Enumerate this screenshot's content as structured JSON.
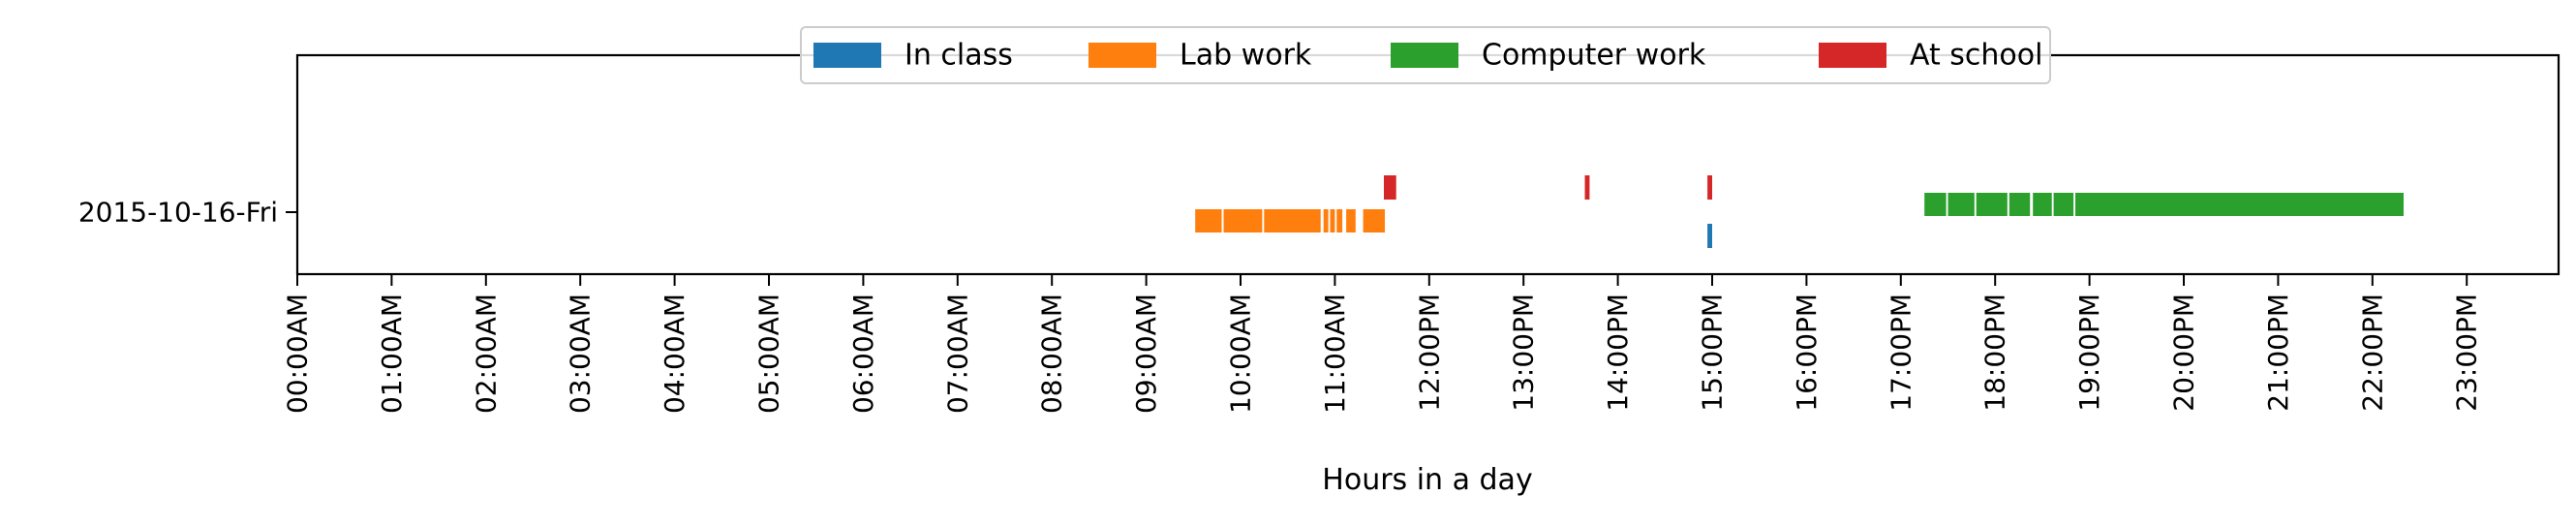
{
  "chart_data": {
    "type": "timeline",
    "title": "",
    "xlabel": "Hours in a day",
    "ylabel": "",
    "xlim": [
      0,
      24
    ],
    "grid": false,
    "legend_position": "top-center",
    "y_categories": [
      "2015-10-16-Fri"
    ],
    "x_tick_labels": [
      "00:00AM",
      "01:00AM",
      "02:00AM",
      "03:00AM",
      "04:00AM",
      "05:00AM",
      "06:00AM",
      "07:00AM",
      "08:00AM",
      "09:00AM",
      "10:00AM",
      "11:00AM",
      "12:00PM",
      "13:00PM",
      "14:00PM",
      "15:00PM",
      "16:00PM",
      "17:00PM",
      "18:00PM",
      "19:00PM",
      "20:00PM",
      "21:00PM",
      "22:00PM",
      "23:00PM"
    ],
    "series": [
      {
        "name": "In class",
        "color": "#1f77b4",
        "intervals_hours": [
          [
            14.95,
            15.0
          ]
        ]
      },
      {
        "name": "Lab work",
        "color": "#ff7f0e",
        "intervals_hours": [
          [
            9.52,
            9.8
          ],
          [
            9.82,
            10.23
          ],
          [
            10.25,
            10.85
          ],
          [
            10.88,
            10.93
          ],
          [
            10.95,
            11.0
          ],
          [
            11.02,
            11.08
          ],
          [
            11.12,
            11.22
          ],
          [
            11.3,
            11.53
          ]
        ]
      },
      {
        "name": "Computer work",
        "color": "#2ff2c",
        "intervals_hours": [
          [
            17.25,
            17.48
          ],
          [
            17.5,
            17.78
          ],
          [
            17.8,
            18.13
          ],
          [
            18.15,
            18.37
          ],
          [
            18.4,
            18.6
          ],
          [
            18.62,
            18.83
          ],
          [
            18.85,
            22.33
          ]
        ]
      },
      {
        "name": "At school",
        "color": "#d62728",
        "intervals_hours": [
          [
            11.52,
            11.65
          ],
          [
            13.65,
            13.7
          ],
          [
            14.95,
            15.0
          ]
        ]
      }
    ]
  }
}
